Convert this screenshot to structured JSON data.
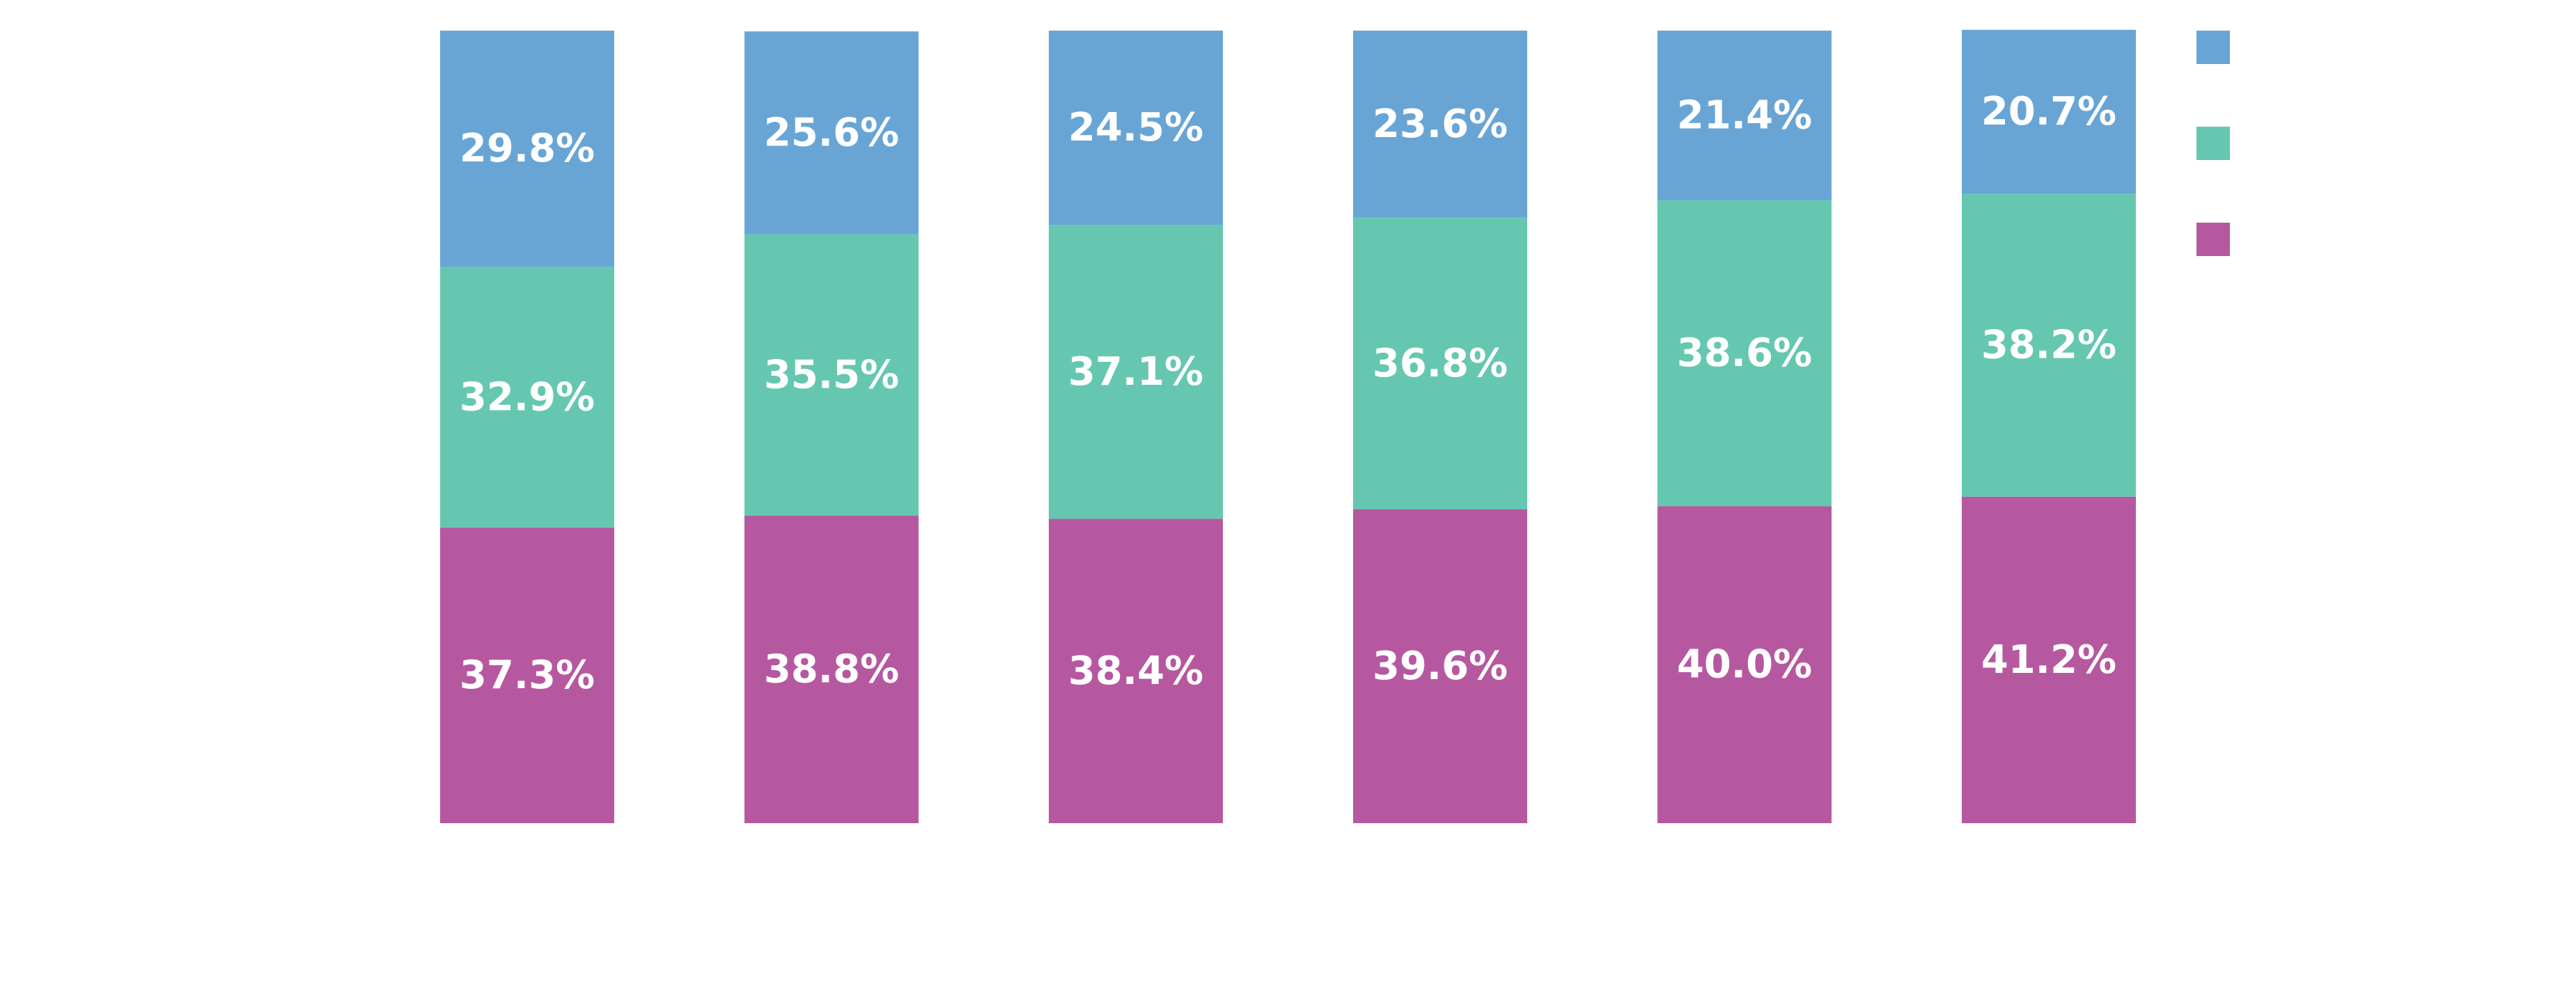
{
  "chart_data": {
    "type": "bar",
    "stacked": true,
    "orientation": "vertical",
    "normalized": true,
    "categories": [
      "",
      "",
      "",
      "",
      "",
      ""
    ],
    "series": [
      {
        "color": "#b658a0",
        "values": [
          37.3,
          38.8,
          38.4,
          39.6,
          40.0,
          41.2
        ],
        "labels": [
          "37.3%",
          "38.8%",
          "38.4%",
          "39.6%",
          "40.0%",
          "41.2%"
        ]
      },
      {
        "color": "#66c7b0",
        "values": [
          32.9,
          35.5,
          37.1,
          36.8,
          38.6,
          38.2
        ],
        "labels": [
          "32.9%",
          "35.5%",
          "37.1%",
          "36.8%",
          "38.6%",
          "38.2%"
        ]
      },
      {
        "color": "#68a5d5",
        "values": [
          29.8,
          25.6,
          24.5,
          23.6,
          21.4,
          20.7
        ],
        "labels": [
          "29.8%",
          "25.6%",
          "24.5%",
          "23.6%",
          "21.4%",
          "20.7%"
        ]
      }
    ],
    "ylim": [
      0,
      100
    ],
    "grid": false,
    "legend": "top-right",
    "legend_order": [
      2,
      1,
      0
    ]
  }
}
